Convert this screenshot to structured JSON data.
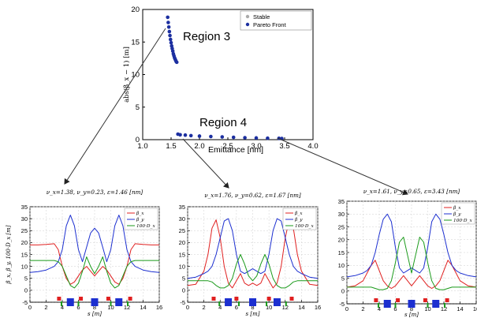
{
  "chart_data": [
    {
      "type": "scatter",
      "title": "",
      "xlabel": "Emittance [nm]",
      "ylabel": "abs(β_x − 1)  [m]",
      "xlim": [
        1.0,
        4.0
      ],
      "ylim": [
        0,
        20
      ],
      "xticks": [
        "1.0",
        "1.5",
        "2.0",
        "2.5",
        "3.0",
        "3.5",
        "4.0"
      ],
      "yticks": [
        "0",
        "5",
        "10",
        "15",
        "20"
      ],
      "legend": {
        "position": "top-right",
        "entries": [
          {
            "label": "Stable",
            "color": "#aaaaaa"
          },
          {
            "label": "Pareto Front",
            "color": "#1c2fa0"
          }
        ]
      },
      "annotations": [
        "Region 3",
        "Region 4"
      ],
      "series": [
        {
          "name": "Pareto Front",
          "color": "#1c2fa0",
          "x": [
            1.44,
            1.45,
            1.46,
            1.47,
            1.48,
            1.49,
            1.5,
            1.51,
            1.52,
            1.53,
            1.54,
            1.55,
            1.56,
            1.57,
            1.58,
            1.59,
            1.6,
            1.62,
            1.66,
            1.75,
            1.85,
            2.0,
            2.2,
            2.4,
            2.6,
            2.8,
            3.0,
            3.2,
            3.4,
            3.45
          ],
          "y": [
            18.8,
            18.0,
            17.3,
            16.6,
            16.0,
            15.4,
            14.9,
            14.4,
            14.0,
            13.6,
            13.2,
            12.9,
            12.6,
            12.4,
            12.2,
            12.0,
            11.9,
            0.85,
            0.75,
            0.7,
            0.62,
            0.55,
            0.48,
            0.42,
            0.36,
            0.3,
            0.26,
            0.22,
            0.2,
            0.18
          ]
        }
      ]
    },
    {
      "type": "line",
      "title": "ν_x=1.38,   ν_y=0.23,   ε=1.46  [nm]",
      "xlabel": "s  [m]",
      "ylabel": "β_x, β_y, 100·D_x  [m]",
      "xlim": [
        0,
        16
      ],
      "ylim": [
        -5,
        35
      ],
      "xticks": [
        "0",
        "2",
        "4",
        "6",
        "8",
        "10",
        "12",
        "14",
        "16"
      ],
      "yticks": [
        "-5",
        "0",
        "5",
        "10",
        "15",
        "20",
        "25",
        "30",
        "35"
      ],
      "legend": {
        "position": "top-right",
        "entries": [
          "β_x",
          "β_y",
          "100·D_x"
        ]
      },
      "x": [
        0,
        1,
        2,
        3,
        3.5,
        4,
        4.5,
        5,
        5.5,
        6,
        6.5,
        7,
        7.5,
        8,
        8.5,
        9,
        9.5,
        10,
        10.5,
        11,
        11.5,
        12,
        12.5,
        13,
        14,
        15,
        16
      ],
      "series": [
        {
          "name": "β_x",
          "color": "#e02020",
          "values": [
            19,
            19,
            19.2,
            19.5,
            17,
            10,
            5,
            2.5,
            3.5,
            6,
            8.5,
            10,
            8,
            6,
            8,
            10,
            8.5,
            6,
            3.5,
            2.5,
            5,
            10,
            17,
            19.5,
            19.2,
            19,
            19
          ]
        },
        {
          "name": "β_y",
          "color": "#1c2fd0",
          "values": [
            7.5,
            7.8,
            8.5,
            10,
            12,
            17,
            27,
            31.5,
            27,
            17,
            12,
            18,
            24,
            26,
            24,
            18,
            12,
            17,
            27,
            31.5,
            27,
            17,
            12,
            10,
            8.5,
            7.8,
            7.5
          ]
        },
        {
          "name": "100·D_x",
          "color": "#1a9a1a",
          "values": [
            12.5,
            12.5,
            12.5,
            12.5,
            12,
            10,
            6,
            2,
            1,
            3,
            8,
            14,
            10,
            7,
            10,
            14,
            8,
            3,
            1,
            2,
            6,
            10,
            12,
            12.5,
            12.5,
            12.5,
            12.5
          ]
        }
      ],
      "magnets": {
        "red_x": [
          3.6,
          6.3,
          9.7,
          12.4
        ],
        "blue_x": [
          5.0,
          8.0,
          11.0
        ],
        "green_x": [
          3.9,
          6.0,
          10.0,
          12.1
        ]
      }
    },
    {
      "type": "line",
      "title": "ν_x=1.76,   ν_y=0.62,   ε=1.67  [nm]",
      "xlabel": "s  [m]",
      "ylabel": "",
      "xlim": [
        0,
        16
      ],
      "ylim": [
        -5,
        35
      ],
      "xticks": [
        "0",
        "2",
        "4",
        "6",
        "8",
        "10",
        "12",
        "14",
        "16"
      ],
      "yticks": [
        "-5",
        "0",
        "5",
        "10",
        "15",
        "20",
        "25",
        "30",
        "35"
      ],
      "legend": {
        "position": "top-right",
        "entries": [
          "β_x",
          "β_y",
          "100·D_x"
        ]
      },
      "x": [
        0,
        1,
        2,
        2.5,
        3,
        3.5,
        4,
        4.5,
        5,
        5.5,
        6,
        6.5,
        7,
        7.5,
        8,
        8.5,
        9,
        9.5,
        10,
        10.5,
        11,
        11.5,
        12,
        12.5,
        13,
        13.5,
        14,
        15,
        16
      ],
      "series": [
        {
          "name": "β_x",
          "color": "#e02020",
          "values": [
            2,
            2.5,
            8,
            15,
            26,
            29.5,
            22,
            10,
            3,
            1,
            4,
            7,
            3,
            2,
            3,
            2,
            3,
            7,
            4,
            1,
            3,
            10,
            22,
            29.5,
            26,
            15,
            8,
            2.5,
            2
          ]
        },
        {
          "name": "β_y",
          "color": "#1c2fd0",
          "values": [
            5,
            5.5,
            7,
            8,
            10,
            15,
            22,
            29,
            30,
            25,
            15,
            8,
            7,
            8,
            9,
            8,
            7,
            8,
            15,
            25,
            30,
            29,
            22,
            15,
            10,
            8,
            7,
            5.5,
            5
          ]
        },
        {
          "name": "100·D_x",
          "color": "#1a9a1a",
          "values": [
            4,
            4,
            4,
            4,
            3.5,
            2,
            1,
            1,
            2,
            5,
            11,
            15,
            11,
            6,
            4,
            6,
            11,
            15,
            11,
            5,
            2,
            1,
            1,
            2,
            3.5,
            4,
            4,
            4,
            4
          ]
        }
      ],
      "magnets": {
        "red_x": [
          3.2,
          6.0,
          10.0,
          12.8
        ],
        "blue_x": [
          5.0,
          8.0,
          11.0
        ],
        "green_x": [
          3.9,
          6.3,
          9.7,
          12.1
        ]
      }
    },
    {
      "type": "line",
      "title": "ν_x=1.61,   ν_y=0.65,   ε=3.43  [nm]",
      "xlabel": "s  [m]",
      "ylabel": "",
      "xlim": [
        0,
        16
      ],
      "ylim": [
        -5,
        35
      ],
      "xticks": [
        "0",
        "2",
        "4",
        "6",
        "8",
        "10",
        "12",
        "14",
        "16"
      ],
      "yticks": [
        "-5",
        "0",
        "5",
        "10",
        "15",
        "20",
        "25",
        "30",
        "35"
      ],
      "legend": {
        "position": "top-right",
        "entries": [
          "β_x",
          "β_y",
          "100·D_x"
        ]
      },
      "x": [
        0,
        1,
        2,
        2.5,
        3,
        3.5,
        4,
        4.5,
        5,
        5.5,
        6,
        6.5,
        7,
        7.5,
        8,
        8.5,
        9,
        9.5,
        10,
        10.5,
        11,
        11.5,
        12,
        12.5,
        13,
        13.5,
        14,
        15,
        16
      ],
      "series": [
        {
          "name": "β_x",
          "color": "#e02020",
          "values": [
            1.5,
            2,
            4,
            7,
            10,
            12,
            8,
            4,
            2,
            1,
            2,
            4,
            6,
            4,
            2,
            4,
            6,
            4,
            2,
            1,
            2,
            4,
            8,
            12,
            10,
            7,
            4,
            2,
            1.5
          ]
        },
        {
          "name": "β_y",
          "color": "#1c2fd0",
          "values": [
            5.5,
            6,
            7,
            8,
            10,
            15,
            22,
            28,
            30,
            27,
            17,
            9,
            7,
            8,
            9,
            8,
            7,
            9,
            17,
            27,
            30,
            28,
            22,
            15,
            10,
            8,
            7,
            6,
            5.5
          ]
        },
        {
          "name": "100·D_x",
          "color": "#1a9a1a",
          "values": [
            1.5,
            1.5,
            1.5,
            1.5,
            1.5,
            1,
            0.5,
            0.5,
            1,
            4,
            11,
            19,
            21,
            14,
            7,
            14,
            21,
            19,
            11,
            4,
            1,
            0.5,
            0.5,
            1,
            1.5,
            1.5,
            1.5,
            1.5,
            1.5
          ]
        }
      ],
      "magnets": {
        "red_x": [
          3.6,
          6.3,
          9.7,
          12.4
        ],
        "blue_x": [
          5.0,
          8.0,
          11.0
        ],
        "green_x": [
          3.9,
          6.0,
          10.0,
          12.1
        ]
      }
    }
  ]
}
